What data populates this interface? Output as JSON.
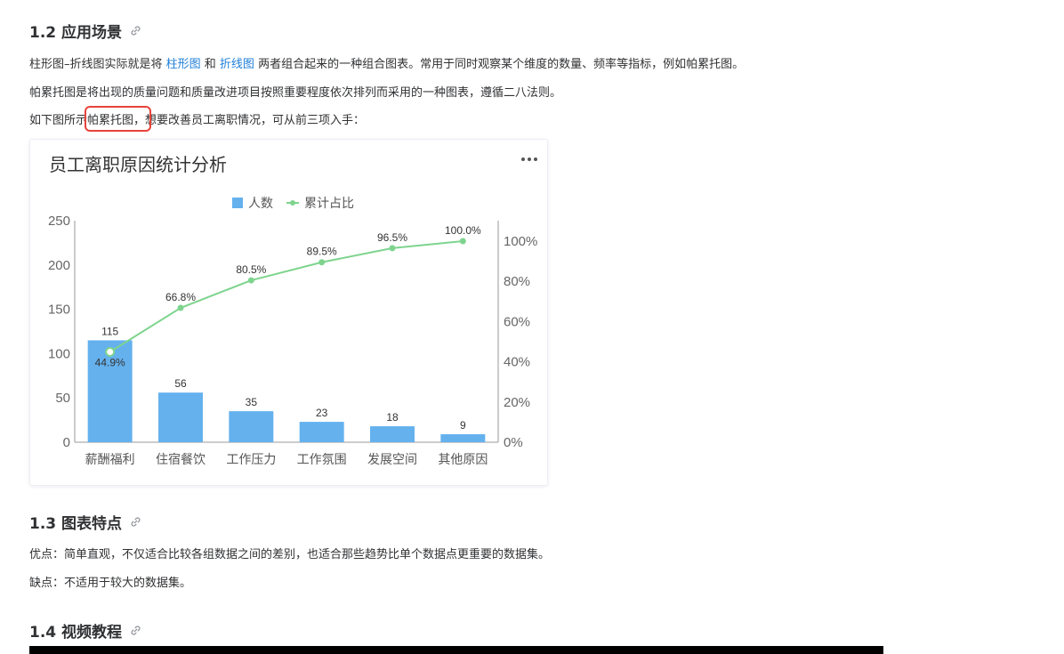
{
  "section_1_2": {
    "title": "1.2 应用场景",
    "p1_prefix": "柱形图–折线图实际就是将 ",
    "p1_link1": "柱形图",
    "p1_mid": " 和 ",
    "p1_link2": "折线图",
    "p1_suffix": " 两者组合起来的一种组合图表。常用于同时观察某个维度的数量、频率等指标，例如帕累托图。",
    "p2": "帕累托图是将出现的质量问题和质量改进项目按照重要程度依次排列而采用的一种图表，遵循二八法则。",
    "p3": "如下图所示帕累托图，想要改善员工离职情况，可从前三项入手："
  },
  "section_1_3": {
    "title": "1.3 图表特点",
    "p1": "优点：简单直观，不仅适合比较各组数据之间的差别，也适合那些趋势比单个数据点更重要的数据集。",
    "p2": "缺点：不适用于较大的数据集。"
  },
  "section_1_4": {
    "title": "1.4 视频教程"
  },
  "colors": {
    "bar": "#64b1ee",
    "line": "#7ed48e",
    "link": "#1f7fd8",
    "highlight": "#e8433a"
  },
  "icons": {
    "anchor": "link-icon",
    "menu": "more-horizontal-icon"
  },
  "chart_data": {
    "type": "bar",
    "title": "员工离职原因统计分析",
    "categories": [
      "薪酬福利",
      "住宿餐饮",
      "工作压力",
      "工作氛围",
      "发展空间",
      "其他原因"
    ],
    "series": [
      {
        "name": "人数",
        "type": "bar",
        "axis": "left",
        "values": [
          115,
          56,
          35,
          23,
          18,
          9
        ]
      },
      {
        "name": "累计占比",
        "type": "line",
        "axis": "right",
        "values": [
          44.9,
          66.8,
          80.5,
          89.5,
          96.5,
          100.0
        ]
      }
    ],
    "y_left": {
      "min": 0,
      "max": 250,
      "ticks": [
        0,
        50,
        100,
        150,
        200,
        250
      ]
    },
    "y_right": {
      "min": 0,
      "max": 100,
      "ticks": [
        0,
        20,
        40,
        60,
        80,
        100
      ],
      "unit": "%"
    },
    "legend": "top-center",
    "grid": false
  }
}
